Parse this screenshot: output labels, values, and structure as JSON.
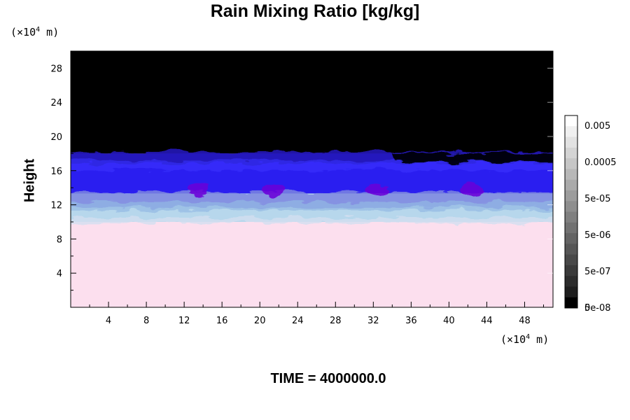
{
  "chart_data": {
    "type": "heatmap",
    "title": "Rain Mixing Ratio [kg/kg]",
    "ylabel": "Height",
    "xlabel": "",
    "x_unit": {
      "prefix": "(×10",
      "exp": "4",
      "suffix": " m)"
    },
    "y_unit": {
      "prefix": "(×10",
      "exp": "4",
      "suffix": " m)"
    },
    "xlim": [
      0,
      51
    ],
    "ylim": [
      0,
      30
    ],
    "x_ticks": [
      "4",
      "8",
      "12",
      "16",
      "20",
      "24",
      "28",
      "32",
      "36",
      "40",
      "44",
      "48"
    ],
    "y_ticks": [
      "4",
      "8",
      "12",
      "16",
      "20",
      "24",
      "28"
    ],
    "bands": [
      {
        "name": "lower",
        "y_range": [
          0,
          10
        ],
        "color": "#fcdfee"
      },
      {
        "name": "light-blue",
        "y_range": [
          10,
          13
        ],
        "color": "#b7d7ec"
      },
      {
        "name": "blue",
        "y_range": [
          13,
          18
        ],
        "color": "#2a1ef0"
      },
      {
        "name": "upper",
        "y_range": [
          18,
          30
        ],
        "color": "#000000"
      }
    ],
    "colorbar": {
      "labels": [
        "0.005",
        "0.0005",
        "5e-05",
        "5e-06",
        "5e-07",
        "5e-08",
        "0"
      ],
      "colors": [
        "#ffffff",
        "#f0f0f0",
        "#e2e2e2",
        "#d4d4d4",
        "#c6c6c6",
        "#b8b8b8",
        "#aaaaaa",
        "#9c9c9c",
        "#8e8e8e",
        "#808080",
        "#727272",
        "#646464",
        "#565656",
        "#484848",
        "#3a3a3a",
        "#2c2c2c",
        "#1e1e1e",
        "#000000"
      ]
    },
    "grid": false
  },
  "footer": {
    "time_label": "TIME = 4000000.0"
  }
}
